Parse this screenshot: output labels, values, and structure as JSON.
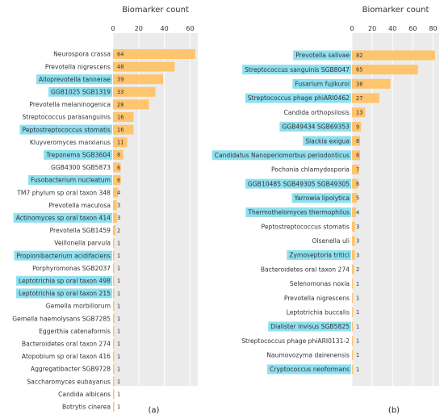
{
  "colors": {
    "bar": "#ffc46e",
    "highlight": "#8fe0f0",
    "plot_bg": "#ebebeb",
    "grid": "#ffffff"
  },
  "chart_data": [
    {
      "type": "bar",
      "orientation": "horizontal",
      "panel_label": "(a)",
      "xlabel": "Biomarker count",
      "xticks": [
        0,
        20,
        40,
        60
      ],
      "xlim": [
        0,
        66
      ],
      "grid": true,
      "categories": [
        "Neurospora crassa",
        "Prevotella nigrescens",
        "Alloprevotella tannerae",
        "GGB1025 SGB1319",
        "Prevotella melaninogenica",
        "Streptococcus parasanguinis",
        "Peptostreptococcus stomatis",
        "Kluyveromyces marxianus",
        "Treponema SGB3604",
        "GGB4300 SGB5873",
        "Fusobacterium nucleatum",
        "TM7 phylum sp oral taxon 348",
        "Prevotella maculosa",
        "Actinomyces sp oral taxon 414",
        "Prevotella SGB1459",
        "Veillonella parvula",
        "Propionibacterium acidifaciens",
        "Porphyromonas SGB2037",
        "Leptotrichia sp oral taxon 498",
        "Leptotrichia sp oral taxon 215",
        "Gemella morbillorum",
        "Gemella haemolysans SGB7285",
        "Eggerthia catenaformis",
        "Bacteroidetes oral taxon 274",
        "Atopobium sp oral taxon 416",
        "Aggregatibacter SGB9728",
        "Saccharomyces eubayanus",
        "Candida albicans",
        "Botrytis cinerea"
      ],
      "values": [
        64,
        48,
        39,
        33,
        28,
        16,
        16,
        11,
        8,
        6,
        6,
        4,
        3,
        3,
        2,
        1,
        1,
        1,
        1,
        1,
        1,
        1,
        1,
        1,
        1,
        1,
        1,
        1,
        1
      ],
      "highlighted": [
        false,
        false,
        true,
        true,
        false,
        false,
        true,
        false,
        true,
        false,
        true,
        false,
        false,
        true,
        false,
        false,
        true,
        false,
        true,
        true,
        false,
        false,
        false,
        false,
        false,
        false,
        false,
        false,
        false
      ]
    },
    {
      "type": "bar",
      "orientation": "horizontal",
      "panel_label": "(b)",
      "xlabel": "Biomarker count",
      "xticks": [
        0,
        20,
        40,
        60,
        80
      ],
      "xlim": [
        0,
        86
      ],
      "grid": true,
      "categories": [
        "Prevotella salivae",
        "Streptococcus sanguinis SGB8047",
        "Fusarium fujikuroi",
        "Streptococcus phage phiARI0462",
        "Candida orthopsilosis",
        "GGB49434 SGB69353",
        "Slackia exigua",
        "Candidatus Nanoperiomorbus periodonticus",
        "Pochonia chlamydosporia",
        "GGB10485 SGB49305 SGB49305",
        "Yarrowia lipolytica",
        "Thermothelomyces thermophilus",
        "Peptostreptococcus stomatis",
        "Olsenella uli",
        "Zymoseptoria tritici",
        "Bacteroidetes oral taxon 274",
        "Selenomonas noxia",
        "Prevotella nigrescens",
        "Leptotrichia buccalis",
        "Dialister invisus SGB5825",
        "Streptococcus phage phiARI0131-2",
        "Naumovozyma dairenensis",
        "Cryptococcus neoformans"
      ],
      "values": [
        82,
        65,
        38,
        27,
        13,
        9,
        8,
        8,
        7,
        6,
        5,
        4,
        3,
        3,
        3,
        2,
        1,
        1,
        1,
        1,
        1,
        1,
        1
      ],
      "highlighted": [
        true,
        true,
        true,
        true,
        false,
        true,
        true,
        true,
        false,
        true,
        true,
        true,
        false,
        false,
        true,
        false,
        false,
        false,
        false,
        true,
        false,
        false,
        true
      ]
    }
  ]
}
